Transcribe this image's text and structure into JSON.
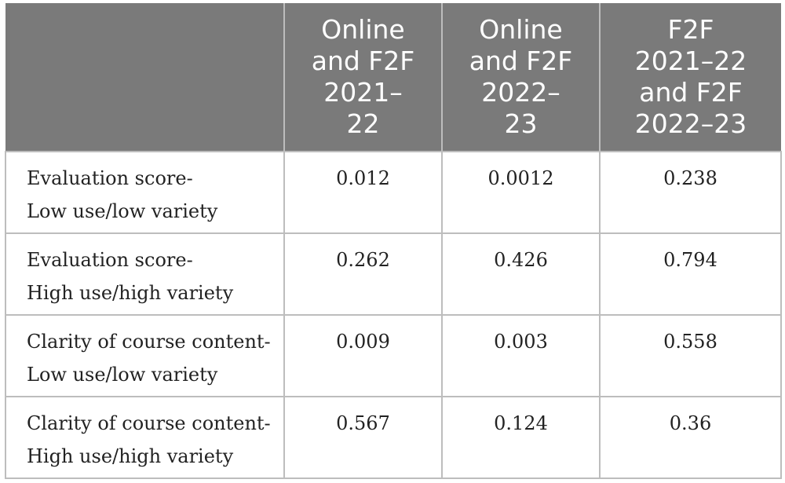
{
  "table": {
    "headers": [
      "",
      "Online and F2F 2021–22",
      "Online and F2F 2022–23",
      "F2F 2021–22 and F2F 2022–23"
    ],
    "header_lines": [
      [],
      [
        "Online",
        "and F2F",
        "2021–",
        "22"
      ],
      [
        "Online",
        "and F2F",
        "2022–",
        "23"
      ],
      [
        "F2F",
        "2021–22",
        "and F2F",
        "2022–23"
      ]
    ],
    "rows": [
      {
        "label_line1": "Evaluation score-",
        "label_line2": "Low use/low variety",
        "values": [
          "0.012",
          "0.0012",
          "0.238"
        ]
      },
      {
        "label_line1": "Evaluation score-",
        "label_line2": "High use/high variety",
        "values": [
          "0.262",
          "0.426",
          "0.794"
        ]
      },
      {
        "label_line1": "Clarity of course content-",
        "label_line2": "Low use/low variety",
        "values": [
          "0.009",
          "0.003",
          "0.558"
        ]
      },
      {
        "label_line1": "Clarity of course content-",
        "label_line2": "High use/high variety",
        "values": [
          "0.567",
          "0.124",
          "0.36"
        ]
      }
    ]
  },
  "colors": {
    "header_bg": "#7a7a7a",
    "header_text": "#ffffff",
    "border": "#bdbdbd",
    "body_text": "#222222"
  }
}
